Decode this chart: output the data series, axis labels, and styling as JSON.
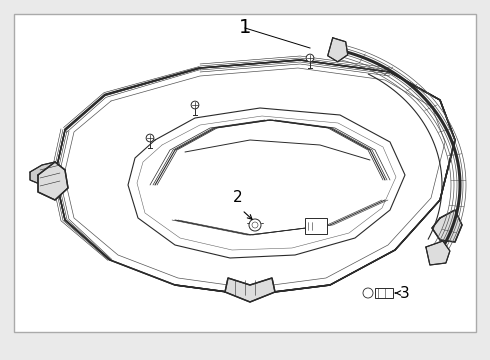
{
  "background_color": "#eaeaea",
  "border_color": "#aaaaaa",
  "line_color": "#2a2a2a",
  "white": "#ffffff",
  "light_gray": "#e8e8e8",
  "label_1": "1",
  "label_2": "2",
  "label_3": "3",
  "figsize": [
    4.9,
    3.6
  ],
  "dpi": 100,
  "border": [
    0.03,
    0.03,
    0.94,
    0.92
  ]
}
